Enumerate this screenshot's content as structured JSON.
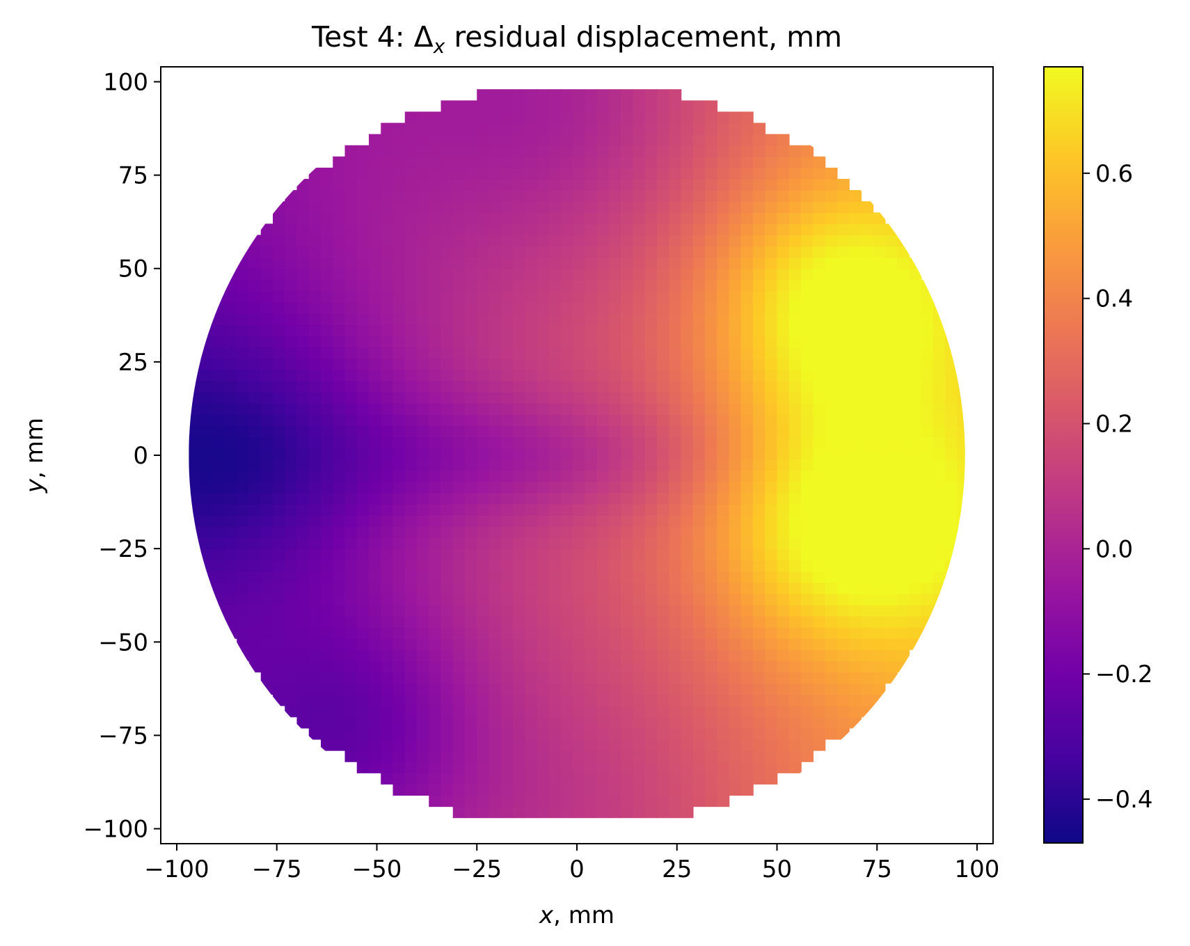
{
  "chart_data": {
    "type": "heatmap",
    "title": {
      "prefix": "Test 4: Δ",
      "subscript": "x",
      "suffix": " residual displacement, mm"
    },
    "xlabel": {
      "italic": "x",
      "rest": ", mm"
    },
    "ylabel": {
      "italic": "y",
      "rest": ", mm"
    },
    "xlim": [
      -104,
      104
    ],
    "ylim": [
      -104,
      104
    ],
    "x_ticks": [
      -100,
      -75,
      -50,
      -25,
      0,
      25,
      50,
      75,
      100
    ],
    "x_tick_labels": [
      "−100",
      "−75",
      "−50",
      "−25",
      "0",
      "25",
      "50",
      "75",
      "100"
    ],
    "y_ticks": [
      100,
      75,
      50,
      25,
      0,
      -25,
      -50,
      -75,
      -100
    ],
    "y_tick_labels": [
      "100",
      "75",
      "50",
      "25",
      "0",
      "−25",
      "−50",
      "−75",
      "−100"
    ],
    "grid": false,
    "domain_radius_mm": 97,
    "colormap": "plasma",
    "colormap_stops": [
      "#0d0887",
      "#47039f",
      "#7301a8",
      "#9c179e",
      "#bd3786",
      "#d8576b",
      "#ed7953",
      "#fa9e3b",
      "#fdc926",
      "#f0f921"
    ],
    "colorbar": {
      "min": -0.47,
      "max": 0.77,
      "ticks": [
        0.6,
        0.4,
        0.2,
        0.0,
        -0.2,
        -0.4
      ],
      "tick_labels": [
        "0.6",
        "0.4",
        "0.2",
        "0.0",
        "−0.2",
        "−0.4"
      ]
    },
    "field_features": [
      {
        "x": -85,
        "y": 0,
        "value": -0.45
      },
      {
        "x": -60,
        "y": -75,
        "value": -0.38
      },
      {
        "x": 65,
        "y": 40,
        "value": 0.75
      },
      {
        "x": 68,
        "y": -18,
        "value": 0.77
      },
      {
        "x": 0,
        "y": 95,
        "value": 0.0
      },
      {
        "x": 0,
        "y": -95,
        "value": 0.05
      },
      {
        "x": 92,
        "y": 0,
        "value": 0.5
      }
    ]
  }
}
